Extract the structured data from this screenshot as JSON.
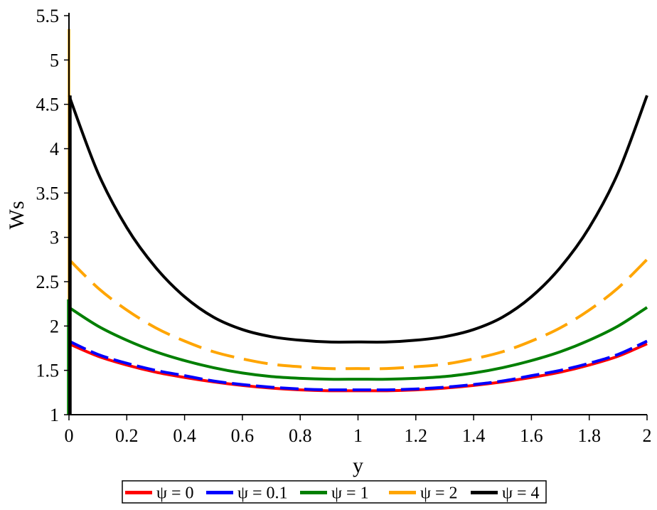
{
  "chart_data": {
    "type": "line",
    "xlabel": "y",
    "ylabel": "Ws",
    "xlim": [
      0,
      2
    ],
    "ylim": [
      1,
      5.5
    ],
    "xticks": [
      "0",
      "0.2",
      "0.4",
      "0.6",
      "0.8",
      "1",
      "1.2",
      "1.4",
      "1.6",
      "1.8",
      "2"
    ],
    "yticks": [
      "1",
      "1.5",
      "2",
      "2.5",
      "3",
      "3.5",
      "4",
      "4.5",
      "5",
      "5.5"
    ],
    "grid": false,
    "legend_position": "bottom",
    "x": [
      0,
      0.1,
      0.2,
      0.3,
      0.4,
      0.5,
      0.6,
      0.7,
      0.8,
      0.9,
      1.0,
      1.1,
      1.2,
      1.3,
      1.4,
      1.5,
      1.6,
      1.7,
      1.8,
      1.9,
      2.0
    ],
    "series": [
      {
        "name": "ψ = 0",
        "color": "#ff0000",
        "dash": "solid",
        "values": [
          1.8,
          1.66,
          1.56,
          1.48,
          1.42,
          1.37,
          1.33,
          1.3,
          1.28,
          1.27,
          1.27,
          1.27,
          1.28,
          1.3,
          1.33,
          1.37,
          1.42,
          1.48,
          1.56,
          1.66,
          1.8
        ]
      },
      {
        "name": "ψ = 0.1",
        "color": "#0000ff",
        "dash": "dashed",
        "values": [
          1.83,
          1.68,
          1.58,
          1.5,
          1.44,
          1.38,
          1.34,
          1.31,
          1.29,
          1.28,
          1.28,
          1.28,
          1.29,
          1.31,
          1.34,
          1.38,
          1.44,
          1.5,
          1.58,
          1.68,
          1.83
        ]
      },
      {
        "name": "ψ = 1",
        "color": "#007f00",
        "dash": "solid",
        "values": [
          2.21,
          2.0,
          1.84,
          1.71,
          1.61,
          1.53,
          1.47,
          1.43,
          1.41,
          1.4,
          1.4,
          1.4,
          1.41,
          1.43,
          1.47,
          1.53,
          1.61,
          1.71,
          1.84,
          2.0,
          2.21
        ]
      },
      {
        "name": "ψ = 2",
        "color": "#ffa500",
        "dash": "longdash",
        "values": [
          2.75,
          2.43,
          2.18,
          1.98,
          1.83,
          1.71,
          1.63,
          1.57,
          1.54,
          1.52,
          1.52,
          1.52,
          1.54,
          1.57,
          1.63,
          1.71,
          1.83,
          1.98,
          2.18,
          2.43,
          2.75
        ]
      },
      {
        "name": "ψ = 4",
        "color": "#000000",
        "dash": "solid",
        "values": [
          4.6,
          3.73,
          3.11,
          2.66,
          2.33,
          2.1,
          1.96,
          1.88,
          1.84,
          1.82,
          1.82,
          1.82,
          1.84,
          1.88,
          1.96,
          2.1,
          2.33,
          2.66,
          3.11,
          3.73,
          4.6
        ]
      }
    ]
  }
}
